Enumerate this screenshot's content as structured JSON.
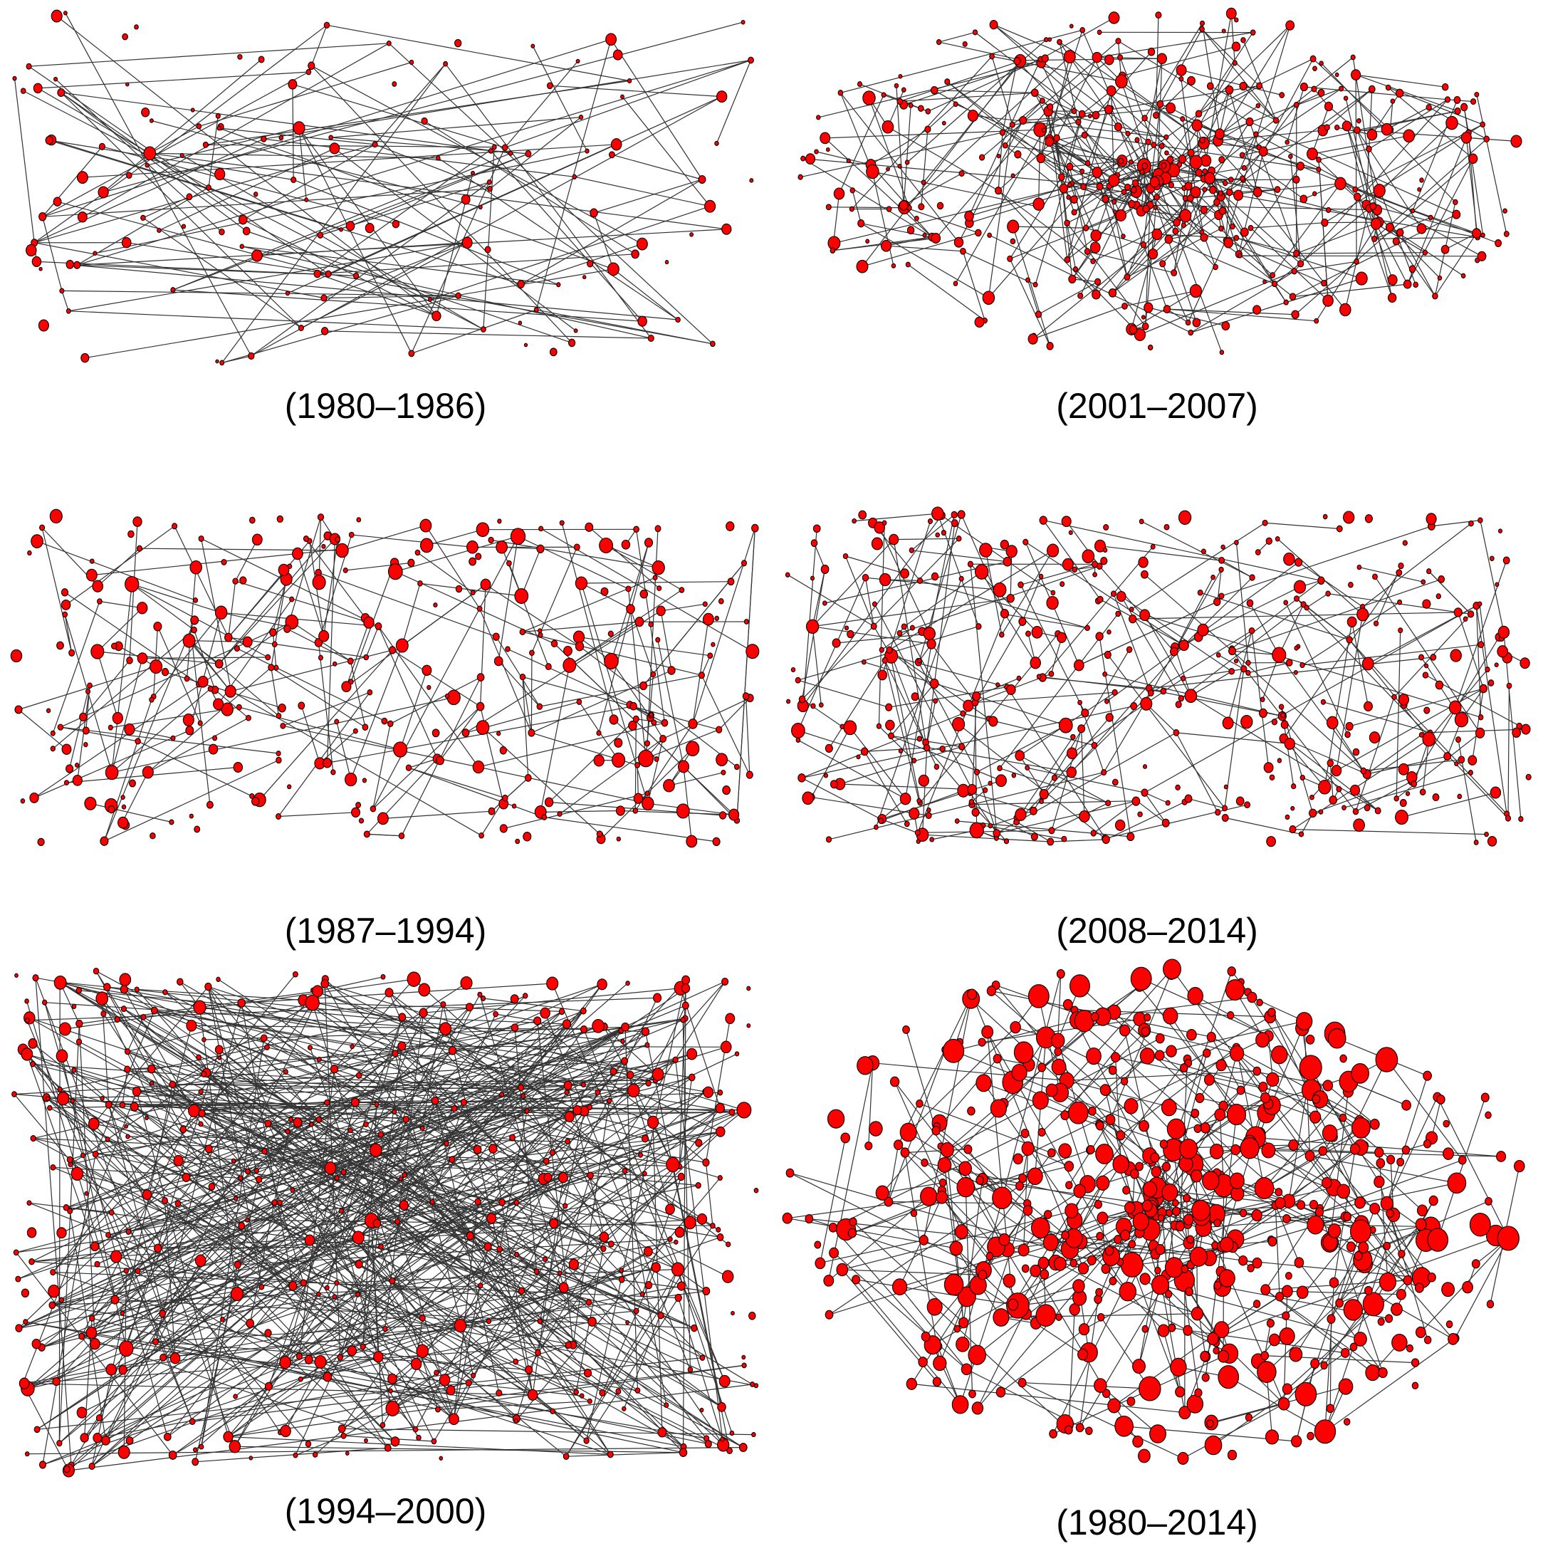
{
  "figure": {
    "node_color": "#ff0000",
    "edge_color": "#333333",
    "panels": [
      {
        "id": "p1",
        "caption": "(1980–1986)",
        "nodes": 150,
        "seed": 11,
        "density": 0.9,
        "size_scale": 0.8,
        "spread": "wide-sparse"
      },
      {
        "id": "p2",
        "caption": "(2001–2007)",
        "nodes": 430,
        "seed": 23,
        "density": 1.1,
        "size_scale": 0.9,
        "spread": "dense-core"
      },
      {
        "id": "p3",
        "caption": "(1987–1994)",
        "nodes": 330,
        "seed": 37,
        "density": 0.75,
        "size_scale": 1.0,
        "spread": "tree"
      },
      {
        "id": "p4",
        "caption": "(2008–2014)",
        "nodes": 440,
        "seed": 51,
        "density": 0.7,
        "size_scale": 0.95,
        "spread": "tree"
      },
      {
        "id": "p5",
        "caption": "(1994–2000)",
        "nodes": 470,
        "seed": 67,
        "density": 1.2,
        "size_scale": 0.9,
        "spread": "wide-sparse"
      },
      {
        "id": "p6",
        "caption": "(1980–2014)",
        "nodes": 560,
        "seed": 83,
        "density": 0.85,
        "size_scale": 1.6,
        "spread": "dense-core"
      }
    ]
  }
}
